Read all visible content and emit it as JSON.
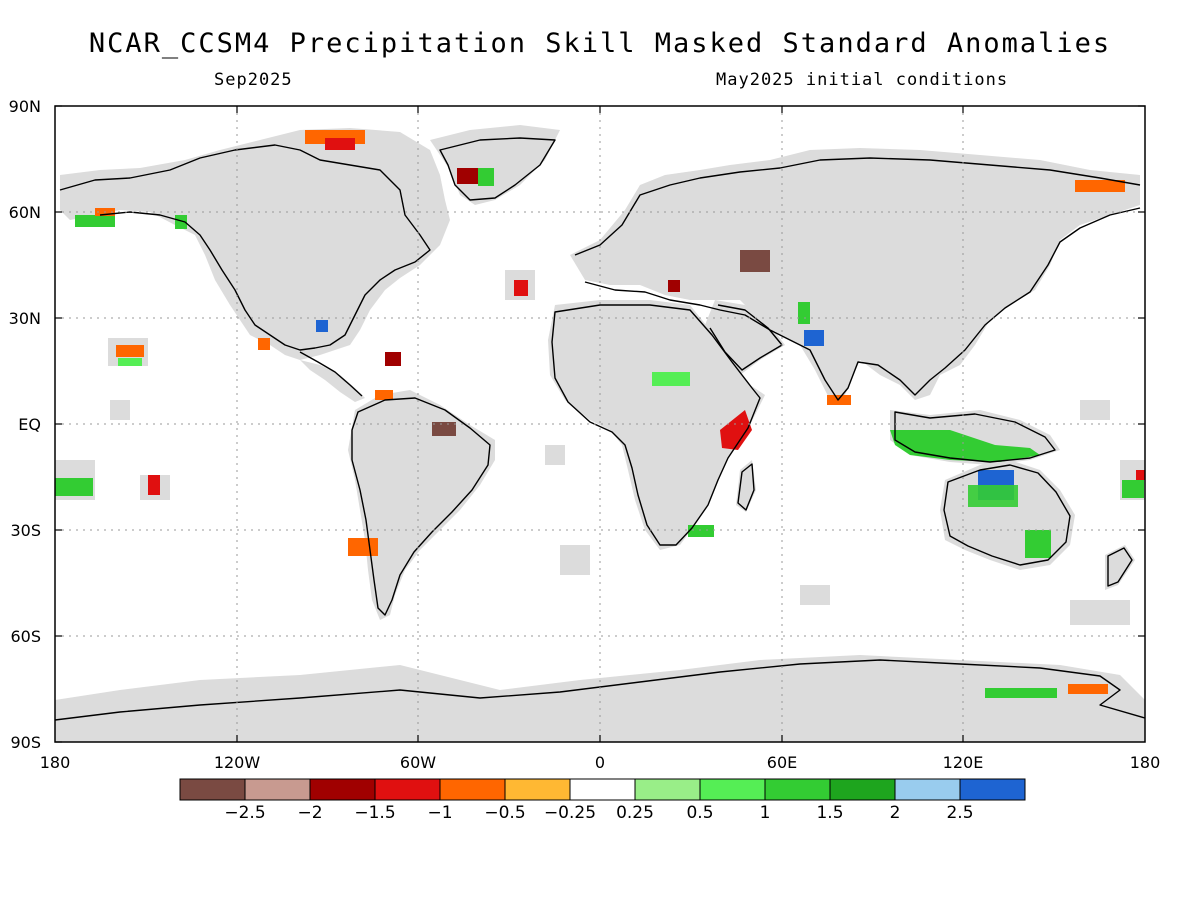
{
  "title": "NCAR_CCSM4 Precipitation Skill Masked Standard Anomalies",
  "subtitle_left": "Sep2025",
  "subtitle_right": "May2025 initial conditions",
  "lat_labels": [
    "90N",
    "60N",
    "30N",
    "EQ",
    "30S",
    "60S",
    "90S"
  ],
  "lon_labels": [
    "180",
    "120W",
    "60W",
    "0",
    "60E",
    "120E",
    "180"
  ],
  "colors": {
    "land_mask": "#dcdcdc",
    "coast": "#000000",
    "grid": "#999999"
  },
  "colorbar": {
    "colors": [
      "#7a4a42",
      "#c89a90",
      "#a00000",
      "#e01010",
      "#ff6600",
      "#ffb833",
      "#ffffff",
      "#99ee88",
      "#55ee55",
      "#33cc33",
      "#1ea51e",
      "#99ccee",
      "#1e64d2"
    ],
    "labels": [
      "−2.5",
      "−2",
      "−1.5",
      "−1",
      "−0.5",
      "−0.25",
      "0.25",
      "0.5",
      "1",
      "1.5",
      "2",
      "2.5"
    ]
  }
}
